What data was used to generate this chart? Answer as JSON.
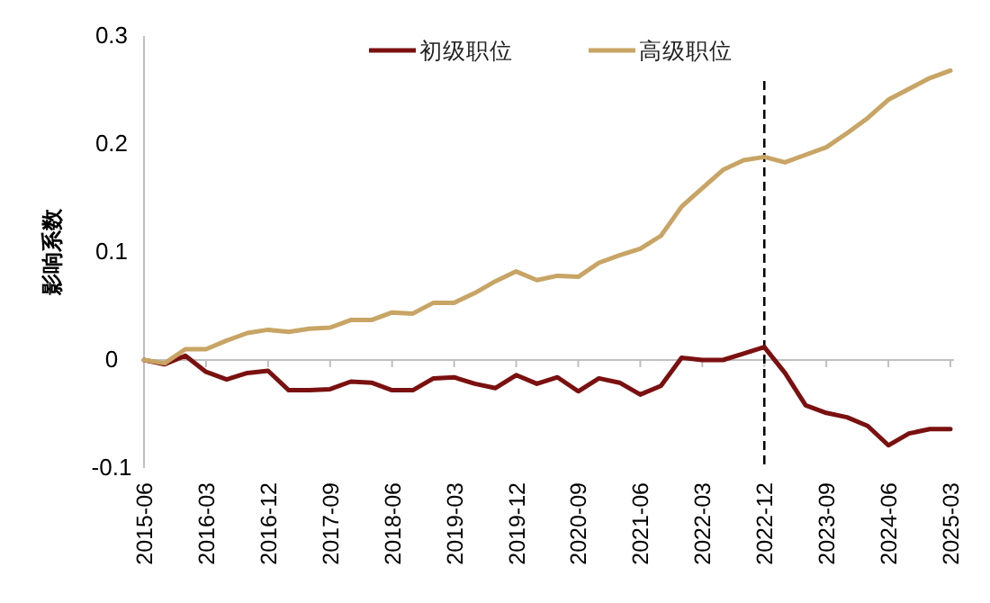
{
  "chart_data": {
    "type": "line",
    "ylabel": "影响系数",
    "categories": [
      "2015-06",
      null,
      null,
      "2016-03",
      null,
      null,
      "2016-12",
      null,
      null,
      "2017-09",
      null,
      null,
      "2018-06",
      null,
      null,
      "2019-03",
      null,
      null,
      "2019-12",
      null,
      null,
      "2020-09",
      null,
      null,
      "2021-06",
      null,
      null,
      "2022-03",
      null,
      null,
      "2022-12",
      null,
      null,
      "2023-09",
      null,
      null,
      "2024-06",
      null,
      null,
      "2025-03"
    ],
    "series": [
      {
        "name": "初级职位",
        "color": "#7b1010",
        "values": [
          0,
          -0.004,
          0.004,
          -0.011,
          -0.018,
          -0.012,
          -0.01,
          -0.028,
          -0.028,
          -0.027,
          -0.02,
          -0.021,
          -0.028,
          -0.028,
          -0.017,
          -0.016,
          -0.022,
          -0.026,
          -0.014,
          -0.022,
          -0.016,
          -0.029,
          -0.017,
          -0.021,
          -0.032,
          -0.024,
          0.002,
          0,
          0,
          0.006,
          0.012,
          -0.012,
          -0.042,
          -0.049,
          -0.053,
          -0.061,
          -0.079,
          -0.068,
          -0.064,
          -0.064
        ]
      },
      {
        "name": "高级职位",
        "color": "#c8a465",
        "values": [
          0,
          -0.003,
          0.01,
          0.01,
          0.018,
          0.025,
          0.028,
          0.026,
          0.029,
          0.03,
          0.037,
          0.037,
          0.044,
          0.043,
          0.053,
          0.053,
          0.062,
          0.073,
          0.082,
          0.074,
          0.078,
          0.077,
          0.09,
          0.097,
          0.103,
          0.115,
          0.142,
          0.159,
          0.176,
          0.185,
          0.188,
          0.183,
          0.19,
          0.197,
          0.21,
          0.224,
          0.241,
          0.251,
          0.261,
          0.268
        ]
      }
    ],
    "ylim": [
      -0.1,
      0.3
    ],
    "yticks": [
      -0.1,
      0,
      0.1,
      0.2,
      0.3
    ],
    "ref_lines": [
      {
        "axis": "x",
        "value": "2022-12",
        "color": "#000000",
        "line_style": "dashed"
      }
    ],
    "legend": "top",
    "grid": false,
    "marker": "none",
    "line_style": "solid"
  }
}
